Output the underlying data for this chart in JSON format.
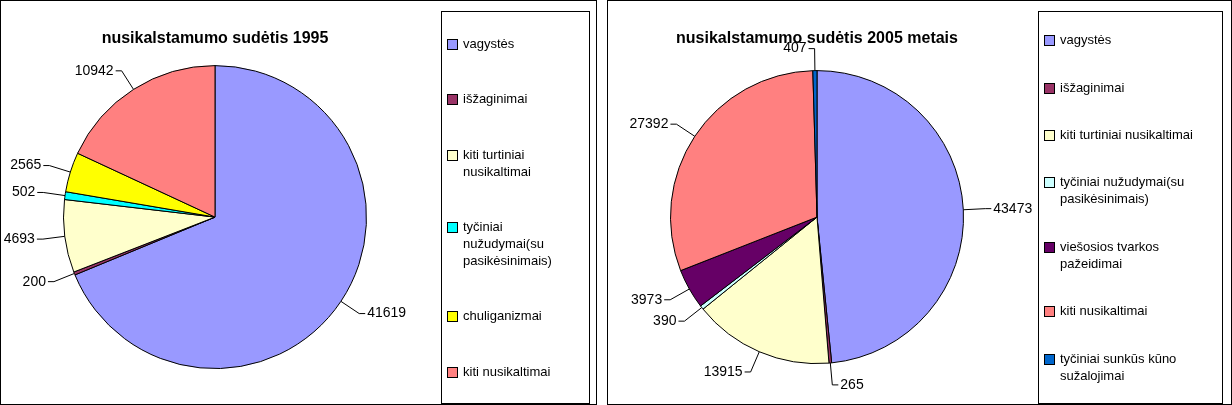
{
  "chart_data": [
    {
      "type": "pie",
      "title": "nusikalstamumo sudėtis 1995",
      "legend": "right",
      "data_labels": true,
      "categories": [
        "vagystės",
        "išžaginimai",
        "kiti turtiniai nusikaltimai",
        "tyčiniai nužudymai(su pasikėsinimais)",
        "chuliganizmai",
        "kiti nusikaltimai"
      ],
      "values": [
        41619,
        200,
        4693,
        502,
        2565,
        10942
      ],
      "colors": [
        "#9999ff",
        "#993366",
        "#ffffcc",
        "#00ffff",
        "#ffff00",
        "#ff8080"
      ]
    },
    {
      "type": "pie",
      "title": "nusikalstamumo sudėtis 2005 metais",
      "legend": "right",
      "data_labels": true,
      "categories": [
        "vagystės",
        "išžaginimai",
        "kiti turtiniai nusikaltimai",
        "tyčiniai nužudymai(su pasikėsinimais)",
        "viešosios tvarkos pažeidimai",
        "kiti nusikaltimai",
        "tyčiniai sunkūs kūno sužalojimai"
      ],
      "values": [
        43473,
        265,
        13915,
        390,
        3973,
        27392,
        407
      ],
      "colors": [
        "#9999ff",
        "#993366",
        "#ffffcc",
        "#ccffff",
        "#660066",
        "#ff8080",
        "#0066cc"
      ]
    }
  ]
}
